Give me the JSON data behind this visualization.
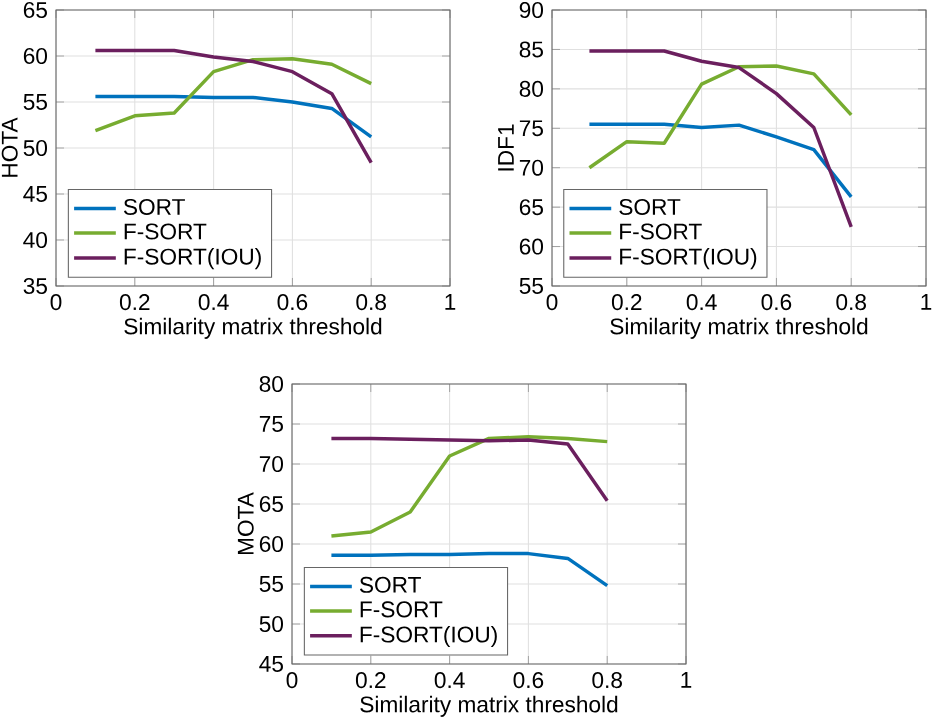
{
  "chart_data": [
    {
      "type": "line",
      "xlabel": "Similarity matrix threshold",
      "ylabel": "HOTA",
      "x": [
        0.1,
        0.2,
        0.3,
        0.4,
        0.5,
        0.6,
        0.7,
        0.8
      ],
      "xlim": [
        0,
        1
      ],
      "ylim": [
        35,
        65
      ],
      "xticks": [
        0,
        0.2,
        0.4,
        0.6,
        0.8,
        1
      ],
      "yticks": [
        35,
        40,
        45,
        50,
        55,
        60,
        65
      ],
      "grid": true,
      "legend": "bottom left",
      "series": [
        {
          "name": "SORT",
          "color": "#0072bd",
          "values": [
            55.6,
            55.6,
            55.6,
            55.5,
            55.5,
            55.0,
            54.3,
            51.2
          ]
        },
        {
          "name": "F-SORT",
          "color": "#77ac30",
          "values": [
            51.9,
            53.5,
            53.8,
            58.3,
            59.6,
            59.7,
            59.1,
            57.0
          ]
        },
        {
          "name": "F-SORT(IOU)",
          "color": "#6b1f5e",
          "values": [
            60.6,
            60.6,
            60.6,
            59.9,
            59.4,
            58.3,
            55.9,
            48.4
          ]
        }
      ]
    },
    {
      "type": "line",
      "xlabel": "Similarity matrix threshold",
      "ylabel": "IDF1",
      "x": [
        0.1,
        0.2,
        0.3,
        0.4,
        0.5,
        0.6,
        0.7,
        0.8
      ],
      "xlim": [
        0,
        1
      ],
      "ylim": [
        55,
        90
      ],
      "xticks": [
        0,
        0.2,
        0.4,
        0.6,
        0.8,
        1
      ],
      "yticks": [
        55,
        60,
        65,
        70,
        75,
        80,
        85,
        90
      ],
      "grid": true,
      "legend": "bottom left",
      "series": [
        {
          "name": "SORT",
          "color": "#0072bd",
          "values": [
            75.5,
            75.5,
            75.5,
            75.1,
            75.4,
            73.9,
            72.3,
            66.3
          ]
        },
        {
          "name": "F-SORT",
          "color": "#77ac30",
          "values": [
            70.0,
            73.3,
            73.1,
            80.6,
            82.8,
            82.9,
            81.9,
            76.7
          ]
        },
        {
          "name": "F-SORT(IOU)",
          "color": "#6b1f5e",
          "values": [
            84.8,
            84.8,
            84.8,
            83.5,
            82.7,
            79.4,
            75.1,
            62.5
          ]
        }
      ]
    },
    {
      "type": "line",
      "xlabel": "Similarity matrix threshold",
      "ylabel": "MOTA",
      "x": [
        0.1,
        0.2,
        0.3,
        0.4,
        0.5,
        0.6,
        0.7,
        0.8
      ],
      "xlim": [
        0,
        1
      ],
      "ylim": [
        45,
        80
      ],
      "xticks": [
        0,
        0.2,
        0.4,
        0.6,
        0.8,
        1
      ],
      "yticks": [
        45,
        50,
        55,
        60,
        65,
        70,
        75,
        80
      ],
      "grid": true,
      "legend": "bottom left",
      "series": [
        {
          "name": "SORT",
          "color": "#0072bd",
          "values": [
            58.6,
            58.6,
            58.7,
            58.7,
            58.8,
            58.8,
            58.2,
            54.8
          ]
        },
        {
          "name": "F-SORT",
          "color": "#77ac30",
          "values": [
            61.0,
            61.5,
            64.0,
            71.0,
            73.2,
            73.4,
            73.2,
            72.8
          ]
        },
        {
          "name": "F-SORT(IOU)",
          "color": "#6b1f5e",
          "values": [
            73.2,
            73.2,
            73.1,
            73.0,
            72.9,
            73.0,
            72.5,
            65.4
          ]
        }
      ]
    }
  ]
}
